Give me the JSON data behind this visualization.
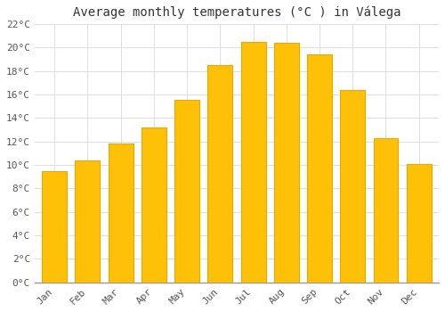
{
  "title": "Average monthly temperatures (°C ) in Válega",
  "months": [
    "Jan",
    "Feb",
    "Mar",
    "Apr",
    "May",
    "Jun",
    "Jul",
    "Aug",
    "Sep",
    "Oct",
    "Nov",
    "Dec"
  ],
  "values": [
    9.5,
    10.4,
    11.8,
    13.2,
    15.5,
    18.5,
    20.5,
    20.4,
    19.4,
    16.4,
    12.3,
    10.1
  ],
  "bar_color": "#FFC107",
  "bar_edge_color": "#E8A800",
  "background_color": "#FFFFFF",
  "grid_color": "#DDDDDD",
  "ylim": [
    0,
    22
  ],
  "ytick_step": 2,
  "title_fontsize": 10,
  "tick_fontsize": 8,
  "font_family": "monospace"
}
